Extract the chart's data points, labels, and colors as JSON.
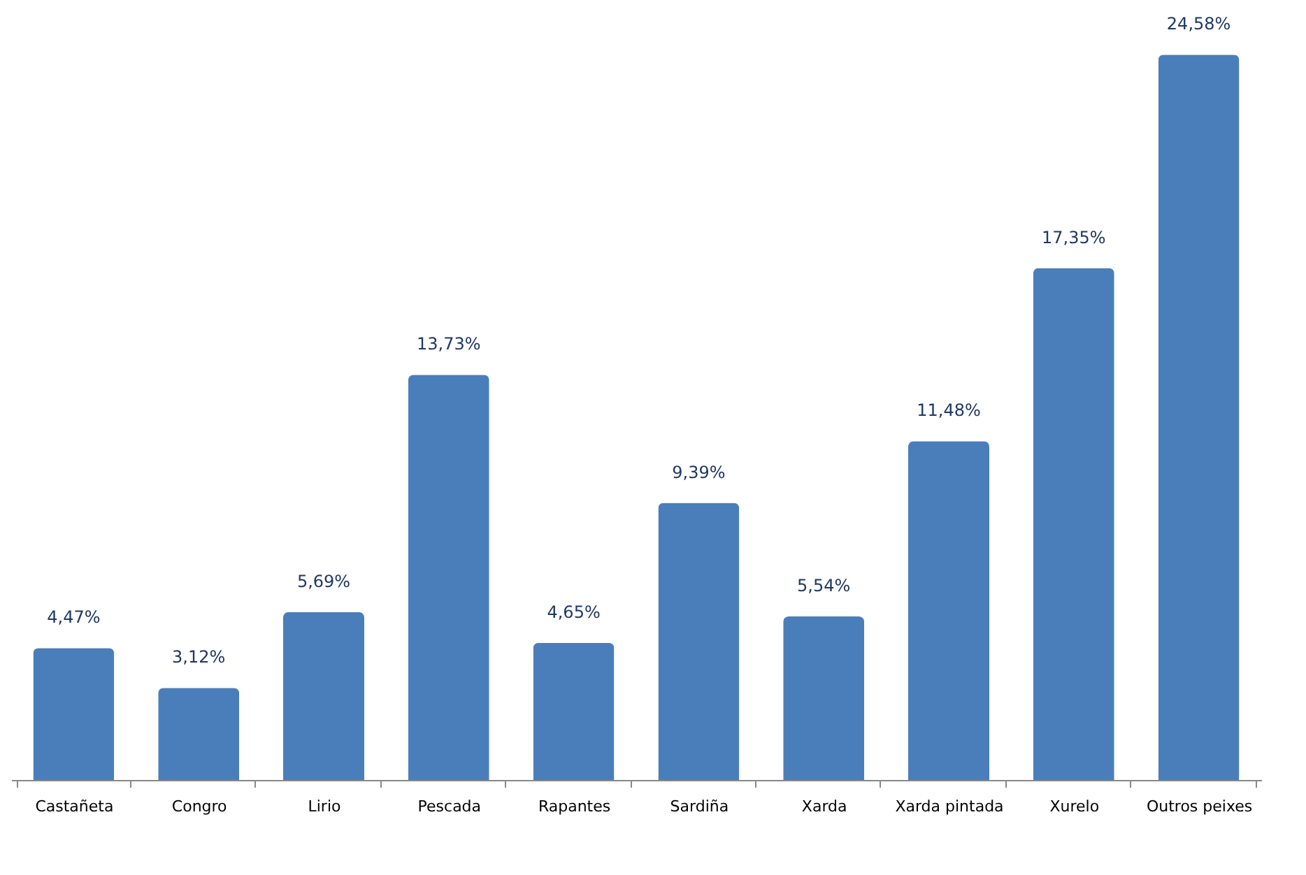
{
  "chart_data": {
    "type": "bar",
    "categories": [
      "Castañeta",
      "Congro",
      "Lirio",
      "Pescada",
      "Rapantes",
      "Sardiña",
      "Xarda",
      "Xarda pintada",
      "Xurelo",
      "Outros peixes"
    ],
    "values": [
      4.47,
      3.12,
      5.69,
      13.73,
      4.65,
      9.39,
      5.54,
      11.48,
      17.35,
      24.58
    ],
    "value_labels": [
      "4,47%",
      "3,12%",
      "5,69%",
      "13,73%",
      "4,65%",
      "9,39%",
      "5,54%",
      "11,48%",
      "17,35%",
      "24,58%"
    ],
    "color": "#4a7ebb",
    "tick_labels": "x"
  }
}
